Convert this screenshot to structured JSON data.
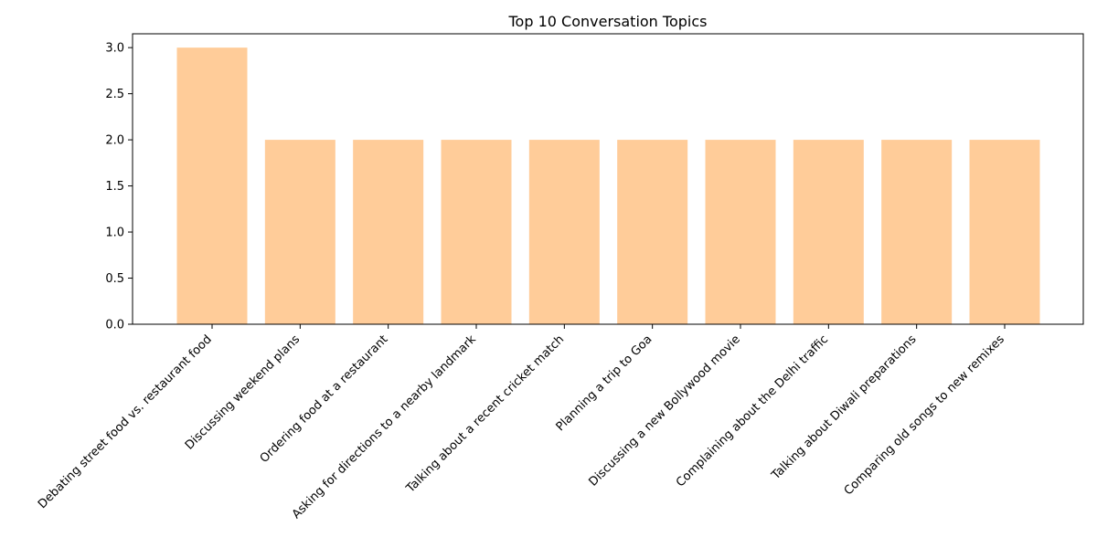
{
  "chart_data": {
    "type": "bar",
    "title": "Top 10 Conversation Topics",
    "xlabel": "",
    "ylabel": "",
    "categories": [
      "Debating street food vs. restaurant food",
      "Discussing weekend plans",
      "Ordering food at a restaurant",
      "Asking for directions to a nearby landmark",
      "Talking about a recent cricket match",
      "Planning a trip to Goa",
      "Discussing a new Bollywood movie",
      "Complaining about the Delhi traffic",
      "Talking about Diwali preparations",
      "Comparing old songs to new remixes"
    ],
    "values": [
      3,
      2,
      2,
      2,
      2,
      2,
      2,
      2,
      2,
      2
    ],
    "yticks": [
      "0.0",
      "0.5",
      "1.0",
      "1.5",
      "2.0",
      "2.5",
      "3.0"
    ],
    "ylim": [
      0,
      3.15
    ],
    "bar_color": "#ffcc99",
    "grid": false,
    "legend": "none"
  }
}
